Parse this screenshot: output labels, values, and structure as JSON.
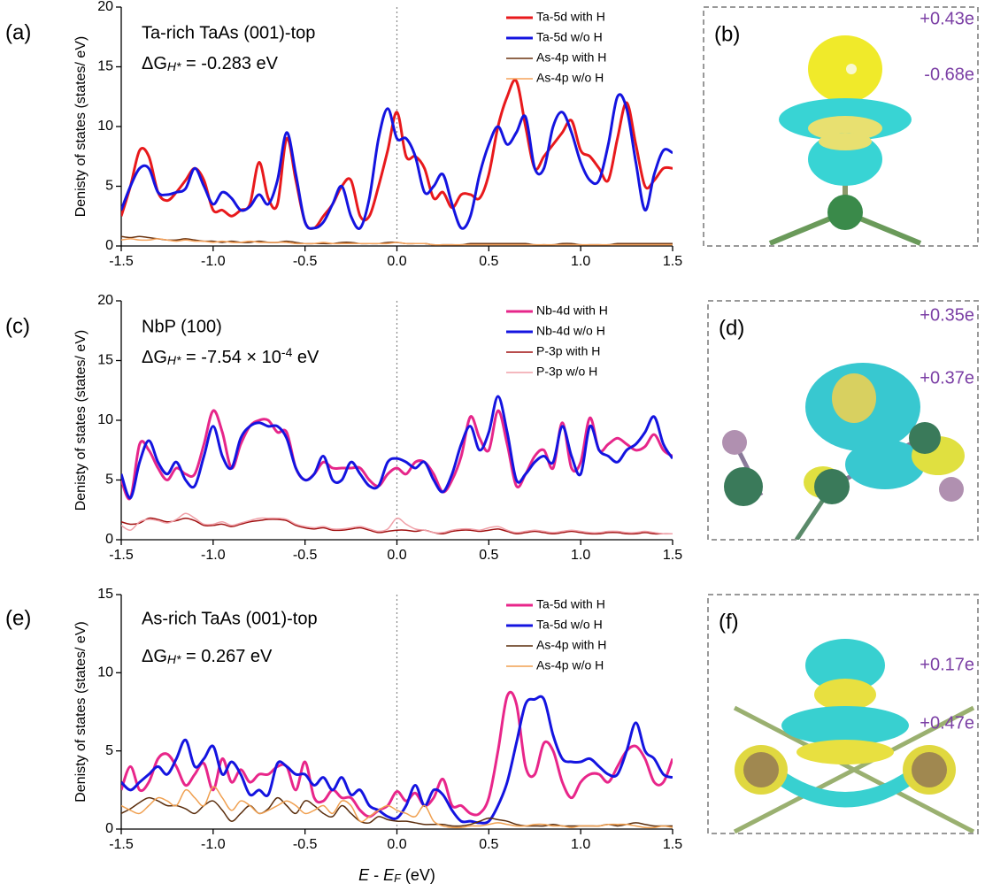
{
  "chart_data": [
    {
      "type": "line",
      "panel_label": "(a)",
      "title": "Ta-rich TaAs (001)-top",
      "annotation": {
        "symbol": "ΔG",
        "subscript": "H*",
        "text": " = -0.283 eV"
      },
      "ylabel": "Denisty of states (states/ eV)",
      "x": [
        -1.5,
        -1.45,
        -1.4,
        -1.35,
        -1.3,
        -1.25,
        -1.2,
        -1.15,
        -1.1,
        -1.05,
        -1,
        -0.95,
        -0.9,
        -0.85,
        -0.8,
        -0.75,
        -0.7,
        -0.65,
        -0.6,
        -0.55,
        -0.5,
        -0.45,
        -0.4,
        -0.35,
        -0.3,
        -0.25,
        -0.2,
        -0.15,
        -0.1,
        -0.05,
        0,
        0.05,
        0.1,
        0.15,
        0.2,
        0.25,
        0.3,
        0.35,
        0.4,
        0.45,
        0.5,
        0.55,
        0.6,
        0.65,
        0.7,
        0.75,
        0.8,
        0.85,
        0.9,
        0.95,
        1,
        1.05,
        1.1,
        1.15,
        1.2,
        1.25,
        1.3,
        1.35,
        1.4,
        1.45,
        1.5
      ],
      "series": [
        {
          "name": "Ta-5d with H",
          "color": "#e8191c",
          "width": 3,
          "values": [
            2.5,
            5,
            8,
            7.5,
            4.5,
            3.8,
            4.5,
            5.5,
            6.5,
            5.5,
            3,
            3,
            2.5,
            3,
            3.5,
            7,
            4,
            3.5,
            9,
            5.5,
            2,
            1.5,
            2.5,
            3.5,
            5,
            5.5,
            2.5,
            2.5,
            5,
            8,
            11.2,
            7.5,
            7.5,
            6.5,
            4,
            4.5,
            3.2,
            4.3,
            4.3,
            4,
            6,
            10,
            12.5,
            13.8,
            10,
            6.5,
            7.5,
            8.5,
            9.5,
            10.5,
            8,
            7.5,
            6.5,
            5.5,
            9,
            12,
            8.5,
            5,
            5.5,
            6.5,
            6.5
          ]
        },
        {
          "name": "Ta-5d w/o H",
          "color": "#1414e0",
          "width": 3,
          "values": [
            3,
            5,
            6.5,
            6.5,
            4.5,
            4.3,
            4.5,
            4.8,
            6.5,
            5,
            3.5,
            4.5,
            4,
            3,
            3.3,
            4.3,
            3.5,
            5.5,
            9.5,
            6,
            2,
            1.5,
            2,
            3.5,
            5,
            2.5,
            1.5,
            4,
            9,
            11.5,
            9,
            9,
            7.5,
            4.5,
            5,
            6,
            3.5,
            1.5,
            2.5,
            6,
            8.5,
            10,
            8.5,
            9.5,
            10.8,
            6.5,
            6.5,
            10,
            11.2,
            9.5,
            7,
            5.5,
            5.5,
            8.5,
            12.5,
            11.5,
            7,
            3,
            6,
            8,
            7.8
          ]
        },
        {
          "name": "As-4p with H",
          "color": "#6b3410",
          "width": 1.5,
          "values": [
            0.8,
            0.7,
            0.8,
            0.7,
            0.6,
            0.5,
            0.5,
            0.6,
            0.5,
            0.4,
            0.4,
            0.3,
            0.4,
            0.3,
            0.3,
            0.4,
            0.3,
            0.3,
            0.4,
            0.3,
            0.2,
            0.2,
            0.2,
            0.2,
            0.3,
            0.3,
            0.2,
            0.2,
            0.2,
            0.3,
            0.3,
            0.2,
            0.2,
            0.2,
            0.1,
            0.1,
            0.1,
            0.1,
            0.2,
            0.2,
            0.2,
            0.2,
            0.2,
            0.2,
            0.2,
            0.1,
            0.1,
            0.1,
            0.2,
            0.2,
            0.1,
            0.1,
            0.1,
            0.1,
            0.2,
            0.2,
            0.2,
            0.2,
            0.2,
            0.2,
            0.2
          ]
        },
        {
          "name": "As-4p w/o H",
          "color": "#f5a35c",
          "width": 1.5,
          "values": [
            0.5,
            0.6,
            0.5,
            0.5,
            0.6,
            0.5,
            0.4,
            0.5,
            0.4,
            0.4,
            0.3,
            0.4,
            0.3,
            0.3,
            0.4,
            0.3,
            0.3,
            0.3,
            0.3,
            0.2,
            0.2,
            0.2,
            0.3,
            0.2,
            0.2,
            0.2,
            0.2,
            0.2,
            0.2,
            0.2,
            0.3,
            0.2,
            0.2,
            0.2,
            0.1,
            0.1,
            0.1,
            0.1,
            0.1,
            0.1,
            0.1,
            0.1,
            0.1,
            0.1,
            0.1,
            0.1,
            0.1,
            0.1,
            0.1,
            0.1,
            0.1,
            0.1,
            0.1,
            0.1,
            0.1,
            0.1,
            0.1,
            0.1,
            0.1,
            0.1,
            0.1
          ]
        }
      ],
      "xlim": [
        -1.5,
        1.5
      ],
      "xticks": [
        -1.5,
        {
          "value": -1,
          "label": "-1.0"
        },
        -0.5,
        {
          "value": 0,
          "label": "0.0"
        },
        0.5,
        {
          "value": 1,
          "label": "1.0"
        },
        1.5
      ],
      "ylim": [
        0,
        20
      ],
      "yticks": [
        0,
        5,
        10,
        15,
        20
      ],
      "vline": 0,
      "legend": "upper right"
    },
    {
      "type": "line",
      "panel_label": "(c)",
      "title": "NbP (100)",
      "annotation": {
        "symbol": "ΔG",
        "subscript": "H*",
        "text": " = -7.54 × 10",
        "superscript": "-4",
        "suffix": " eV"
      },
      "ylabel": "Denisty of states (states/ eV)",
      "x": [
        -1.5,
        -1.45,
        -1.4,
        -1.35,
        -1.3,
        -1.25,
        -1.2,
        -1.15,
        -1.1,
        -1.05,
        -1,
        -0.95,
        -0.9,
        -0.85,
        -0.8,
        -0.75,
        -0.7,
        -0.65,
        -0.6,
        -0.55,
        -0.5,
        -0.45,
        -0.4,
        -0.35,
        -0.3,
        -0.25,
        -0.2,
        -0.15,
        -0.1,
        -0.05,
        0,
        0.05,
        0.1,
        0.15,
        0.2,
        0.25,
        0.3,
        0.35,
        0.4,
        0.45,
        0.5,
        0.55,
        0.6,
        0.65,
        0.7,
        0.75,
        0.8,
        0.85,
        0.9,
        0.95,
        1,
        1.05,
        1.1,
        1.15,
        1.2,
        1.25,
        1.3,
        1.35,
        1.4,
        1.45,
        1.5
      ],
      "series": [
        {
          "name": "Nb-4d with H",
          "color": "#e6268a",
          "width": 3,
          "values": [
            5,
            3.5,
            8,
            7.5,
            6,
            5,
            6,
            5.5,
            5.5,
            8,
            10.8,
            9,
            6,
            8,
            9.5,
            10,
            10,
            9,
            9,
            6,
            5,
            5.5,
            6.5,
            6,
            6,
            6,
            6,
            5,
            4.5,
            5.5,
            6,
            5.5,
            6.5,
            6.5,
            5.5,
            4,
            5,
            7,
            10.3,
            8.5,
            7.5,
            10.8,
            8,
            4.5,
            5.5,
            7,
            7.5,
            6,
            9.8,
            6,
            6.5,
            10.2,
            7.5,
            8,
            8.5,
            8,
            7.5,
            7.8,
            8.8,
            7.5,
            7
          ]
        },
        {
          "name": "Nb-4d w/o H",
          "color": "#1414e0",
          "width": 3,
          "values": [
            5.5,
            3.5,
            6.5,
            8.3,
            6.5,
            5.5,
            6.5,
            5,
            4.5,
            7,
            9.5,
            7,
            6,
            8.5,
            9.5,
            9.8,
            9.5,
            9.5,
            8.5,
            6,
            5,
            5.5,
            7,
            5,
            5,
            6.5,
            5.5,
            4.5,
            4.5,
            6.5,
            6.8,
            6.5,
            6,
            6.5,
            5,
            4,
            5.5,
            8,
            9.5,
            7.5,
            9,
            12,
            9,
            5,
            5.5,
            6.5,
            7,
            6.5,
            9.5,
            7,
            5.5,
            9.5,
            7.5,
            7,
            6.5,
            7.5,
            8,
            9,
            10.3,
            8,
            6.8
          ]
        },
        {
          "name": "P-3p with H",
          "color": "#a01010",
          "width": 1.5,
          "values": [
            1.5,
            1.3,
            1.4,
            1.8,
            1.7,
            1.5,
            1.6,
            1.8,
            1.6,
            1.2,
            1.2,
            1.3,
            1.1,
            1.3,
            1.5,
            1.6,
            1.7,
            1.7,
            1.6,
            1.2,
            1,
            0.9,
            1,
            0.8,
            0.8,
            0.9,
            1,
            0.8,
            0.6,
            0.7,
            0.8,
            0.8,
            0.7,
            0.8,
            0.6,
            0.5,
            0.7,
            0.8,
            0.8,
            0.7,
            0.8,
            0.9,
            0.7,
            0.5,
            0.6,
            0.7,
            0.6,
            0.5,
            0.6,
            0.7,
            0.6,
            0.5,
            0.5,
            0.6,
            0.6,
            0.5,
            0.5,
            0.6,
            0.5,
            0.5,
            0.5
          ]
        },
        {
          "name": "P-3p w/o H",
          "color": "#f0a0a8",
          "width": 1.5,
          "values": [
            1.2,
            0.8,
            1.5,
            1.7,
            1.6,
            1.4,
            1.7,
            2.2,
            1.8,
            1.3,
            1.3,
            1.5,
            1.2,
            1.4,
            1.6,
            1.8,
            1.8,
            1.8,
            1.7,
            1.3,
            1.1,
            1,
            1.1,
            0.9,
            0.9,
            1,
            1.1,
            0.9,
            0.7,
            0.9,
            1.8,
            1.3,
            0.9,
            0.8,
            0.6,
            0.6,
            0.8,
            0.9,
            0.9,
            0.8,
            1,
            1.1,
            0.8,
            0.6,
            0.7,
            0.8,
            0.7,
            0.6,
            0.7,
            0.8,
            0.7,
            0.6,
            0.6,
            0.7,
            0.7,
            0.6,
            0.6,
            0.7,
            0.6,
            0.5,
            0.5
          ]
        }
      ],
      "xlim": [
        -1.5,
        1.5
      ],
      "xticks": [
        -1.5,
        {
          "value": -1,
          "label": "-1.0"
        },
        -0.5,
        {
          "value": 0,
          "label": "0.0"
        },
        0.5,
        {
          "value": 1,
          "label": "1.0"
        },
        1.5
      ],
      "ylim": [
        0,
        20
      ],
      "yticks": [
        0,
        5,
        10,
        15,
        20
      ],
      "vline": 0,
      "legend": "upper right"
    },
    {
      "type": "line",
      "panel_label": "(e)",
      "title": "As-rich TaAs (001)-top",
      "annotation": {
        "symbol": "ΔG",
        "subscript": "H*",
        "text": " = 0.267 eV"
      },
      "ylabel": "Denisty of states (states/ eV)",
      "xlabel": {
        "symbol": "E",
        "text": " - ",
        "symbol2": "E",
        "subscript": "F",
        "suffix": " (eV)"
      },
      "x": [
        -1.5,
        -1.45,
        -1.4,
        -1.35,
        -1.3,
        -1.25,
        -1.2,
        -1.15,
        -1.1,
        -1.05,
        -1,
        -0.95,
        -0.9,
        -0.85,
        -0.8,
        -0.75,
        -0.7,
        -0.65,
        -0.6,
        -0.55,
        -0.5,
        -0.45,
        -0.4,
        -0.35,
        -0.3,
        -0.25,
        -0.2,
        -0.15,
        -0.1,
        -0.05,
        0,
        0.05,
        0.1,
        0.15,
        0.2,
        0.25,
        0.3,
        0.35,
        0.4,
        0.45,
        0.5,
        0.55,
        0.6,
        0.65,
        0.7,
        0.75,
        0.8,
        0.85,
        0.9,
        0.95,
        1,
        1.05,
        1.1,
        1.15,
        1.2,
        1.25,
        1.3,
        1.35,
        1.4,
        1.45,
        1.5
      ],
      "series": [
        {
          "name": "Ta-5d with H",
          "color": "#e8268a",
          "width": 3,
          "values": [
            2.5,
            4,
            2.5,
            3,
            4.5,
            4.8,
            4,
            2.8,
            3.5,
            4.2,
            2.5,
            4.5,
            3,
            3.8,
            3,
            3.5,
            3.5,
            4,
            4,
            2.5,
            4.3,
            2,
            1.8,
            2.5,
            2,
            2,
            1.2,
            0.8,
            1.2,
            1.5,
            2.4,
            1.8,
            2.3,
            1.5,
            2,
            3.2,
            1.5,
            1.5,
            1,
            1,
            2,
            5,
            8.5,
            8,
            4,
            3.5,
            5.5,
            5,
            3,
            2,
            3,
            3.5,
            3.5,
            3,
            4,
            5,
            5.3,
            4.5,
            3,
            3,
            4.5
          ]
        },
        {
          "name": "Ta-5d w/o H",
          "color": "#1414e0",
          "width": 3,
          "values": [
            3,
            2.5,
            3,
            3.5,
            4,
            3.5,
            4.5,
            5.7,
            4,
            4.5,
            5.3,
            3.5,
            4.3,
            3.5,
            2.2,
            2.5,
            2.2,
            4.2,
            4,
            3.5,
            3.5,
            2.8,
            3.3,
            2.5,
            3.3,
            2.2,
            2.5,
            1.5,
            1.2,
            0.8,
            0.7,
            1.5,
            2.8,
            1.5,
            2.5,
            2.2,
            1.2,
            0.5,
            0.5,
            0.4,
            0.5,
            1.5,
            3,
            5.5,
            8,
            8.3,
            8.3,
            6,
            4.5,
            4.3,
            4.3,
            4.5,
            4,
            3.5,
            3.5,
            5,
            6.8,
            5,
            4.5,
            3.5,
            3.3
          ]
        },
        {
          "name": "As-4p with H",
          "color": "#5a2d0c",
          "width": 1.5,
          "values": [
            1,
            1.3,
            1.7,
            2,
            1.8,
            1.5,
            1.5,
            1.3,
            1,
            1.5,
            1.8,
            1.2,
            0.5,
            1,
            1.5,
            1,
            1.3,
            2,
            1.5,
            1,
            1.8,
            1.5,
            1,
            0.8,
            1.5,
            1,
            0.5,
            0.4,
            0.8,
            0.6,
            0.5,
            0.5,
            0.4,
            0.3,
            0.3,
            0.3,
            0.2,
            0.2,
            0.3,
            0.5,
            0.7,
            0.6,
            0.5,
            0.3,
            0.2,
            0.2,
            0.2,
            0.3,
            0.2,
            0.2,
            0.2,
            0.2,
            0.2,
            0.3,
            0.2,
            0.3,
            0.4,
            0.3,
            0.2,
            0.2,
            0.2
          ]
        },
        {
          "name": "As-4p w/o H",
          "color": "#f0a050",
          "width": 1.5,
          "values": [
            1.5,
            1.2,
            1,
            1.5,
            2,
            1.8,
            1.5,
            2.5,
            2,
            1.5,
            2.7,
            2,
            1.2,
            1.8,
            1.5,
            1,
            1.2,
            1.5,
            1.8,
            1.5,
            1,
            1.2,
            1.5,
            1,
            1.8,
            1.5,
            0.5,
            0.8,
            1.2,
            1.5,
            1.2,
            1,
            0.8,
            1.5,
            0.5,
            0.2,
            0.1,
            0.1,
            0.2,
            0.2,
            0.3,
            0.4,
            0.3,
            0.2,
            0.2,
            0.3,
            0.3,
            0.2,
            0.2,
            0.1,
            0.2,
            0.2,
            0.2,
            0.3,
            0.3,
            0.3,
            0.2,
            0.1,
            0.1,
            0.2,
            0.1
          ]
        }
      ],
      "xlim": [
        -1.5,
        1.5
      ],
      "xticks": [
        -1.5,
        {
          "value": -1,
          "label": "-1.0"
        },
        -0.5,
        {
          "value": 0,
          "label": "0.0"
        },
        0.5,
        {
          "value": 1,
          "label": "1.0"
        },
        1.5
      ],
      "ylim": [
        0,
        15
      ],
      "yticks": [
        0,
        5,
        10,
        15
      ],
      "vline": 0,
      "legend": "upper right"
    }
  ],
  "images": [
    {
      "label": "(b)",
      "charges": [
        "+0.43e",
        "-0.68e"
      ]
    },
    {
      "label": "(d)",
      "charges": [
        "+0.35e",
        "+0.37e"
      ]
    },
    {
      "label": "(f)",
      "charges": [
        "+0.17e",
        "+0.47e"
      ]
    }
  ]
}
